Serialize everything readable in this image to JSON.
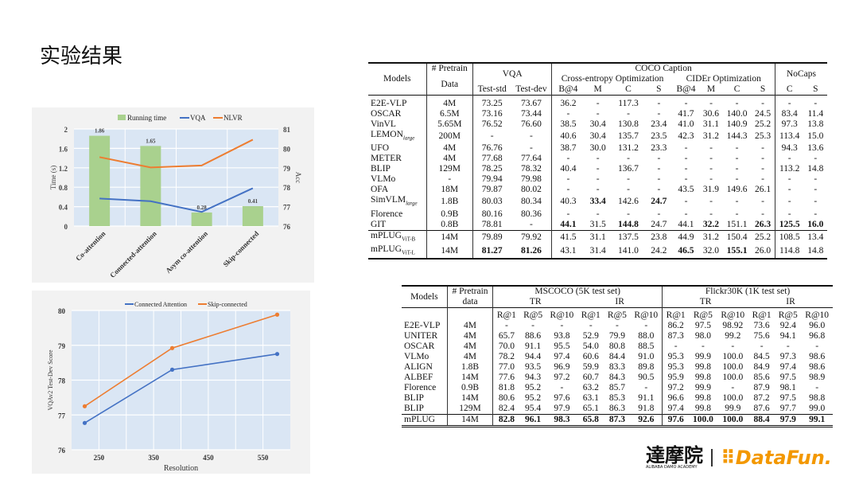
{
  "title": "实验结果",
  "chart_data": [
    {
      "type": "bar+line",
      "categories": [
        "Co-attention",
        "Connected-attention",
        "Asym co-attention",
        "Skip-connected"
      ],
      "series": [
        {
          "name": "Running time",
          "type": "bar",
          "axis": "left",
          "values": [
            1.86,
            1.65,
            0.28,
            0.41
          ],
          "color": "#a9d18e"
        },
        {
          "name": "VQA",
          "type": "line",
          "axis": "right",
          "values": [
            77.42,
            77.28,
            76.73,
            77.95
          ],
          "color": "#4472c4"
        },
        {
          "name": "NLVR",
          "type": "line",
          "axis": "right",
          "values": [
            79.55,
            79.02,
            79.12,
            80.45
          ],
          "color": "#ed7d31"
        }
      ],
      "data_labels": [
        "1.86",
        "1.65",
        "0.28",
        "0.41"
      ],
      "ylabel": "Time (s)",
      "y2label": "Acc",
      "ylim": [
        0,
        2
      ],
      "y2lim": [
        76,
        81
      ],
      "yticks": [
        "0",
        "0.4",
        "0.8",
        "1.2",
        "1.6",
        "2"
      ],
      "y2ticks": [
        "76",
        "77",
        "78",
        "79",
        "80",
        "81"
      ],
      "legend": "top",
      "grid": true
    },
    {
      "type": "line",
      "x": [
        224,
        384,
        576
      ],
      "series": [
        {
          "name": "Connected Attention",
          "values": [
            76.77,
            78.3,
            78.75
          ],
          "color": "#4472c4"
        },
        {
          "name": "Skip-connected",
          "values": [
            77.25,
            78.92,
            79.88
          ],
          "color": "#ed7d31"
        }
      ],
      "xlabel": "Resolution",
      "ylabel": "VQAv2 Test-Dev Score",
      "xlim": [
        200,
        600
      ],
      "ylim": [
        76,
        80
      ],
      "xticks": [
        "250",
        "350",
        "450",
        "550"
      ],
      "yticks": [
        "76",
        "77",
        "78",
        "79",
        "80"
      ],
      "legend": "top",
      "grid": true
    }
  ],
  "table1": {
    "h_models": "Models",
    "h_pretrain1": "# Pretrain",
    "h_pretrain2": "Data",
    "h_vqa": "VQA",
    "h_coco": "COCO Caption",
    "h_nocaps": "NoCaps",
    "h_ce": "Cross-entropy Optimization",
    "h_cider": "CIDEr Optimization",
    "sub": [
      "Test-std",
      "Test-dev",
      "B@4",
      "M",
      "C",
      "S",
      "B@4",
      "M",
      "C",
      "S",
      "C",
      "S"
    ],
    "rows": [
      {
        "m": "E2E-VLP",
        "d": "4M",
        "v": [
          "73.25",
          "73.67",
          "36.2",
          "-",
          "117.3",
          "-",
          "-",
          "-",
          "-",
          "-",
          "-",
          "-"
        ]
      },
      {
        "m": "OSCAR",
        "d": "6.5M",
        "v": [
          "73.16",
          "73.44",
          "-",
          "-",
          "-",
          "-",
          "41.7",
          "30.6",
          "140.0",
          "24.5",
          "83.4",
          "11.4"
        ]
      },
      {
        "m": "VinVL",
        "d": "5.65M",
        "v": [
          "76.52",
          "76.60",
          "38.5",
          "30.4",
          "130.8",
          "23.4",
          "41.0",
          "31.1",
          "140.9",
          "25.2",
          "97.3",
          "13.8"
        ]
      },
      {
        "m": "LEMON",
        "sub": "large",
        "d": "200M",
        "v": [
          "-",
          "-",
          "40.6",
          "30.4",
          "135.7",
          "23.5",
          "42.3",
          "31.2",
          "144.3",
          "25.3",
          "113.4",
          "15.0"
        ]
      },
      {
        "m": "UFO",
        "d": "4M",
        "v": [
          "76.76",
          "-",
          "38.7",
          "30.0",
          "131.2",
          "23.3",
          "-",
          "-",
          "-",
          "-",
          "94.3",
          "13.6"
        ]
      },
      {
        "m": "METER",
        "d": "4M",
        "v": [
          "77.68",
          "77.64",
          "-",
          "-",
          "-",
          "-",
          "-",
          "-",
          "-",
          "-",
          "-",
          "-"
        ]
      },
      {
        "m": "BLIP",
        "d": "129M",
        "v": [
          "78.25",
          "78.32",
          "40.4",
          "-",
          "136.7",
          "-",
          "-",
          "-",
          "-",
          "-",
          "113.2",
          "14.8"
        ]
      },
      {
        "m": "VLMo",
        "d": "-",
        "v": [
          "79.94",
          "79.98",
          "-",
          "-",
          "-",
          "-",
          "-",
          "-",
          "-",
          "-",
          "-",
          "-"
        ]
      },
      {
        "m": "OFA",
        "d": "18M",
        "v": [
          "79.87",
          "80.02",
          "-",
          "-",
          "-",
          "-",
          "43.5",
          "31.9",
          "149.6",
          "26.1",
          "-",
          "-"
        ]
      },
      {
        "m": "SimVLM",
        "sub": "large",
        "d": "1.8B",
        "v": [
          "80.03",
          "80.34",
          "40.3",
          "33.4",
          "142.6",
          "24.7",
          "-",
          "-",
          "-",
          "-",
          "-",
          "-"
        ],
        "bold": [
          3,
          5
        ]
      },
      {
        "m": "Florence",
        "d": "0.9B",
        "v": [
          "80.16",
          "80.36",
          "-",
          "-",
          "-",
          "-",
          "-",
          "-",
          "-",
          "-",
          "-",
          "-"
        ]
      },
      {
        "m": "GIT",
        "d": "0.8B",
        "v": [
          "78.81",
          "-",
          "44.1",
          "31.5",
          "144.8",
          "24.7",
          "44.1",
          "32.2",
          "151.1",
          "26.3",
          "125.5",
          "16.0"
        ],
        "bold": [
          2,
          4,
          7,
          9,
          10,
          11
        ]
      },
      {
        "m": "mPLUG",
        "sub": "ViT-B",
        "d": "14M",
        "v": [
          "79.89",
          "79.92",
          "41.5",
          "31.1",
          "137.5",
          "23.8",
          "44.9",
          "31.2",
          "150.4",
          "25.2",
          "108.5",
          "13.4"
        ],
        "sep": true
      },
      {
        "m": "mPLUG",
        "sub": "ViT-L",
        "d": "14M",
        "v": [
          "81.27",
          "81.26",
          "43.1",
          "31.4",
          "141.0",
          "24.2",
          "46.5",
          "32.0",
          "155.1",
          "26.0",
          "114.8",
          "14.8"
        ],
        "bold": [
          0,
          1,
          6,
          8
        ]
      }
    ]
  },
  "table2": {
    "h_models": "Models",
    "h_pretrain1": "# Pretrain",
    "h_pretrain2": "data",
    "h_mscoco": "MSCOCO (5K test set)",
    "h_flickr": "Flickr30K (1K test set)",
    "tr": "TR",
    "ir": "IR",
    "sub": [
      "R@1",
      "R@5",
      "R@10",
      "R@1",
      "R@5",
      "R@10",
      "R@1",
      "R@5",
      "R@10",
      "R@1",
      "R@5",
      "R@10"
    ],
    "rows": [
      {
        "m": "E2E-VLP",
        "d": "4M",
        "v": [
          "-",
          "-",
          "-",
          "-",
          "-",
          "-",
          "86.2",
          "97.5",
          "98.92",
          "73.6",
          "92.4",
          "96.0"
        ]
      },
      {
        "m": "UNITER",
        "d": "4M",
        "v": [
          "65.7",
          "88.6",
          "93.8",
          "52.9",
          "79.9",
          "88.0",
          "87.3",
          "98.0",
          "99.2",
          "75.6",
          "94.1",
          "96.8"
        ]
      },
      {
        "m": "OSCAR",
        "d": "4M",
        "v": [
          "70.0",
          "91.1",
          "95.5",
          "54.0",
          "80.8",
          "88.5",
          "-",
          "-",
          "-",
          "-",
          "-",
          "-"
        ]
      },
      {
        "m": "VLMo",
        "d": "4M",
        "v": [
          "78.2",
          "94.4",
          "97.4",
          "60.6",
          "84.4",
          "91.0",
          "95.3",
          "99.9",
          "100.0",
          "84.5",
          "97.3",
          "98.6"
        ]
      },
      {
        "m": "ALIGN",
        "d": "1.8B",
        "v": [
          "77.0",
          "93.5",
          "96.9",
          "59.9",
          "83.3",
          "89.8",
          "95.3",
          "99.8",
          "100.0",
          "84.9",
          "97.4",
          "98.6"
        ]
      },
      {
        "m": "ALBEF",
        "d": "14M",
        "v": [
          "77.6",
          "94.3",
          "97.2",
          "60.7",
          "84.3",
          "90.5",
          "95.9",
          "99.8",
          "100.0",
          "85.6",
          "97.5",
          "98.9"
        ]
      },
      {
        "m": "Florence",
        "d": "0.9B",
        "v": [
          "81.8",
          "95.2",
          "-",
          "63.2",
          "85.7",
          "-",
          "97.2",
          "99.9",
          "-",
          "87.9",
          "98.1",
          "-"
        ]
      },
      {
        "m": "BLIP",
        "d": "14M",
        "v": [
          "80.6",
          "95.2",
          "97.6",
          "63.1",
          "85.3",
          "91.1",
          "96.6",
          "99.8",
          "100.0",
          "87.2",
          "97.5",
          "98.8"
        ]
      },
      {
        "m": "BLIP",
        "d": "129M",
        "v": [
          "82.4",
          "95.4",
          "97.9",
          "65.1",
          "86.3",
          "91.8",
          "97.4",
          "99.8",
          "99.9",
          "87.6",
          "97.7",
          "99.0"
        ]
      },
      {
        "m": "mPLUG",
        "d": "14M",
        "v": [
          "82.8",
          "96.1",
          "98.3",
          "65.8",
          "87.3",
          "92.6",
          "97.6",
          "100.0",
          "100.0",
          "88.4",
          "97.9",
          "99.1"
        ],
        "sep": true,
        "bold": [
          0,
          1,
          2,
          3,
          4,
          5,
          6,
          7,
          8,
          9,
          10,
          11
        ]
      }
    ]
  },
  "logos": {
    "damo": "達摩院",
    "damo_sub": "ALIBABA DAMO ACADEMY",
    "datafun": "DataFun."
  }
}
